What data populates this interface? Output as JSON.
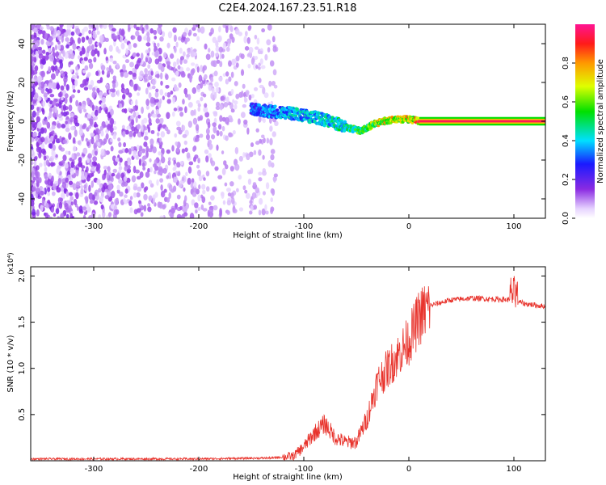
{
  "title": "C2E4.2024.167.23.51.R18",
  "chart_data": [
    {
      "type": "heatmap",
      "xlabel": "Height of straight line (km)",
      "ylabel": "Frequency (Hz)",
      "xlim": [
        -360,
        130
      ],
      "ylim": [
        -50,
        50
      ],
      "xticks": [
        "-300",
        "-200",
        "-100",
        "0",
        "100"
      ],
      "yticks": [
        "40",
        "20",
        "0",
        "-20",
        "-40"
      ],
      "colorbar": {
        "label": "Normalized spectral amplitude",
        "range": [
          0,
          1
        ],
        "ticks": [
          "0.0",
          "0.2",
          "0.4",
          "0.6",
          "0.8"
        ]
      },
      "signal_track": [
        {
          "x": -150,
          "y": 6,
          "amp": 0.35
        },
        {
          "x": -130,
          "y": 5,
          "amp": 0.4
        },
        {
          "x": -110,
          "y": 4,
          "amp": 0.45
        },
        {
          "x": -90,
          "y": 2,
          "amp": 0.45
        },
        {
          "x": -75,
          "y": 0,
          "amp": 0.5
        },
        {
          "x": -60,
          "y": -3,
          "amp": 0.55
        },
        {
          "x": -45,
          "y": -5,
          "amp": 0.65
        },
        {
          "x": -35,
          "y": -2,
          "amp": 0.7
        },
        {
          "x": -25,
          "y": 0,
          "amp": 0.8
        },
        {
          "x": -10,
          "y": 1,
          "amp": 0.8
        },
        {
          "x": 0,
          "y": 1,
          "amp": 0.85
        },
        {
          "x": 10,
          "y": 0,
          "amp": 0.95
        },
        {
          "x": 130,
          "y": 0,
          "amp": 0.95
        }
      ]
    },
    {
      "type": "line",
      "xlabel": "Height of straight line (km)",
      "ylabel": "SNR (10 * v/v)",
      "exponent_label": "(x10⁴)",
      "xlim": [
        -360,
        130
      ],
      "ylim": [
        0,
        2.1
      ],
      "xticks": [
        "-300",
        "-200",
        "-100",
        "0",
        "100"
      ],
      "yticks": [
        "2.0",
        "1.5",
        "1.0",
        "0.5"
      ],
      "color": "#e8332c",
      "series": [
        {
          "x": [
            -360,
            -200,
            -130,
            -110,
            -100,
            -90,
            -80,
            -70,
            -60,
            -50,
            -40,
            -30,
            -20,
            -10,
            0,
            10,
            20,
            40,
            60,
            80,
            100,
            110,
            130
          ],
          "y": [
            0.02,
            0.02,
            0.03,
            0.05,
            0.15,
            0.3,
            0.4,
            0.25,
            0.2,
            0.2,
            0.45,
            0.85,
            1.0,
            1.15,
            1.3,
            1.55,
            1.68,
            1.74,
            1.76,
            1.75,
            1.74,
            1.7,
            1.67
          ]
        }
      ]
    }
  ]
}
